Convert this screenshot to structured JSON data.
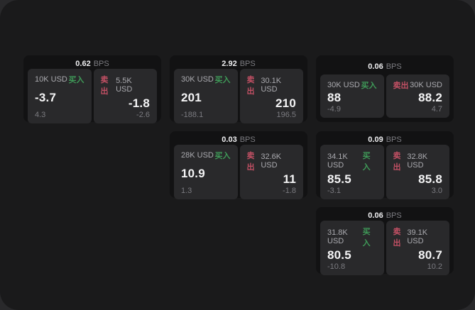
{
  "labels": {
    "buy": "买入",
    "sell": "卖出",
    "bps_unit": "BPS"
  },
  "colors": {
    "outer_bg": "#29292b",
    "window_bg": "#1a1a1b",
    "card_bg": "#121213",
    "panel_bg": "#29292b",
    "buy_green": "#3f9a58",
    "sell_red": "#c25064"
  },
  "cards": [
    {
      "bps": "0.62",
      "buy": {
        "amount": "10K USD",
        "value": "-3.7",
        "delta": "4.3"
      },
      "sell": {
        "amount": "5.5K USD",
        "value": "-1.8",
        "delta": "-2.6"
      }
    },
    {
      "bps": "2.92",
      "buy": {
        "amount": "30K USD",
        "value": "201",
        "delta": "-188.1"
      },
      "sell": {
        "amount": "30.1K USD",
        "value": "210",
        "delta": "196.5"
      }
    },
    {
      "bps": "0.06",
      "buy": {
        "amount": "30K USD",
        "value": "88",
        "delta": "-4.9"
      },
      "sell": {
        "amount": "30K USD",
        "value": "88.2",
        "delta": "4.7"
      }
    },
    {
      "bps": "0.03",
      "buy": {
        "amount": "28K USD",
        "value": "10.9",
        "delta": "1.3"
      },
      "sell": {
        "amount": "32.6K USD",
        "value": "11",
        "delta": "-1.8"
      }
    },
    {
      "bps": "0.09",
      "buy": {
        "amount": "34.1K USD",
        "value": "85.5",
        "delta": "-3.1"
      },
      "sell": {
        "amount": "32.8K USD",
        "value": "85.8",
        "delta": "3.0"
      }
    },
    {
      "bps": "0.06",
      "buy": {
        "amount": "31.8K USD",
        "value": "80.5",
        "delta": "-10.8"
      },
      "sell": {
        "amount": "39.1K USD",
        "value": "80.7",
        "delta": "10.2"
      }
    }
  ]
}
